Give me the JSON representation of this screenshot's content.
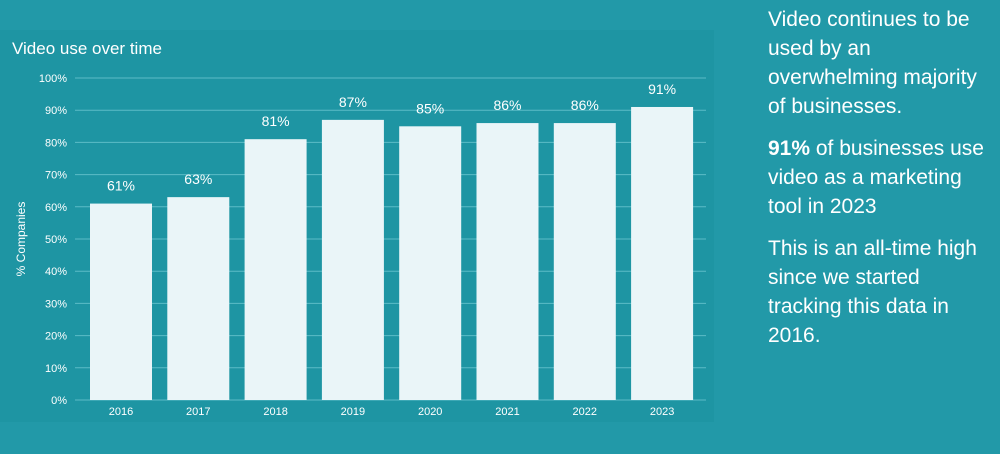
{
  "chart_data": {
    "type": "bar",
    "title": "Video use over time",
    "xlabel": "",
    "ylabel": "% Companies",
    "categories": [
      "2016",
      "2017",
      "2018",
      "2019",
      "2020",
      "2021",
      "2022",
      "2023"
    ],
    "values": [
      61,
      63,
      81,
      87,
      85,
      86,
      86,
      91
    ],
    "data_labels": [
      "61%",
      "63%",
      "81%",
      "87%",
      "85%",
      "86%",
      "86%",
      "91%"
    ],
    "ylim": [
      0,
      100
    ],
    "yticks": [
      0,
      10,
      20,
      30,
      40,
      50,
      60,
      70,
      80,
      90,
      100
    ],
    "ytick_labels": [
      "0%",
      "10%",
      "20%",
      "30%",
      "40%",
      "50%",
      "60%",
      "70%",
      "80%",
      "90%",
      "100%"
    ],
    "grid": true,
    "legend": "none",
    "colors": {
      "bar": "#eaf5f8",
      "grid": "#5cbcc7",
      "background": "#2299a8"
    }
  },
  "side_panel": {
    "headline": "Video continues to be used by an overwhelming majority of businesses.",
    "stat_value": "91%",
    "stat_text": " of businesses use video as a marketing tool in 2023",
    "note": "This is an all-time high since we started tracking this data in 2016."
  }
}
